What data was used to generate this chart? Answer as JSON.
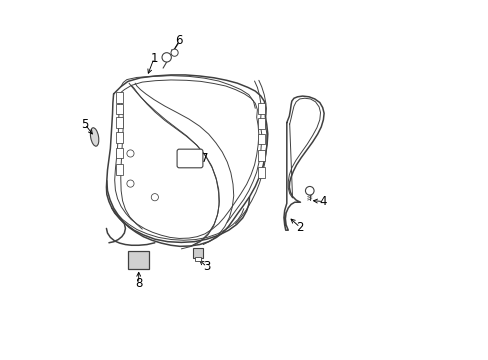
{
  "background_color": "#ffffff",
  "line_color": "#404040",
  "label_color": "#000000",
  "figsize": [
    4.89,
    3.6
  ],
  "dpi": 100,
  "lw_main": 1.1,
  "lw_thin": 0.7,
  "lw_clip": 0.6
}
